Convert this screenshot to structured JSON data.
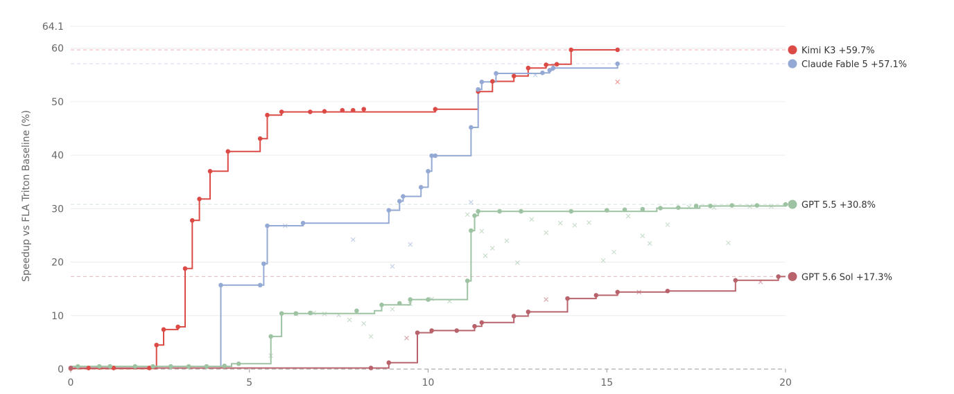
{
  "chart_data": {
    "type": "line",
    "title": "",
    "xlabel": "",
    "ylabel": "Speedup vs FLA Triton Baseline (%)",
    "xlim": [
      0,
      20
    ],
    "ylim": [
      0,
      64.1
    ],
    "x_ticks": [
      "0",
      "5",
      "10",
      "15",
      "20"
    ],
    "y_ticks": [
      "0",
      "10",
      "20",
      "30",
      "40",
      "50",
      "60",
      "64.1"
    ],
    "x_tick_values": [
      0,
      5,
      10,
      15,
      20
    ],
    "y_tick_values": [
      0,
      10,
      20,
      30,
      40,
      50,
      60,
      64.1
    ],
    "grid": "horizontal",
    "legend_placement": "right",
    "series": [
      {
        "name": "Kimi K3 +59.7%",
        "color": "#dc4a45",
        "final": 59.7,
        "step": [
          [
            0,
            0.1
          ],
          [
            2.4,
            0.1
          ],
          [
            2.4,
            4.5
          ],
          [
            2.6,
            4.5
          ],
          [
            2.6,
            7.4
          ],
          [
            3.0,
            7.4
          ],
          [
            3.0,
            7.9
          ],
          [
            3.2,
            7.9
          ],
          [
            3.2,
            18.8
          ],
          [
            3.4,
            18.8
          ],
          [
            3.4,
            27.8
          ],
          [
            3.6,
            27.8
          ],
          [
            3.6,
            31.8
          ],
          [
            3.9,
            31.8
          ],
          [
            3.9,
            37.0
          ],
          [
            4.4,
            37.0
          ],
          [
            4.4,
            40.7
          ],
          [
            5.3,
            40.7
          ],
          [
            5.3,
            43.1
          ],
          [
            5.5,
            43.1
          ],
          [
            5.5,
            47.5
          ],
          [
            5.9,
            47.5
          ],
          [
            5.9,
            48.1
          ],
          [
            10.2,
            48.1
          ],
          [
            10.2,
            48.6
          ],
          [
            11.4,
            48.6
          ],
          [
            11.4,
            51.9
          ],
          [
            11.8,
            51.9
          ],
          [
            11.8,
            53.8
          ],
          [
            12.4,
            53.8
          ],
          [
            12.4,
            54.8
          ],
          [
            12.8,
            54.8
          ],
          [
            12.8,
            56.3
          ],
          [
            13.3,
            56.3
          ],
          [
            13.3,
            56.9
          ],
          [
            13.6,
            56.9
          ],
          [
            13.6,
            57.0
          ],
          [
            14.0,
            57.0
          ],
          [
            14.0,
            59.7
          ],
          [
            15.3,
            59.7
          ]
        ],
        "points": [
          [
            0,
            0.1
          ],
          [
            0.5,
            0.2
          ],
          [
            0.8,
            0.3
          ],
          [
            1.2,
            0.2
          ],
          [
            2.2,
            0.2
          ],
          [
            2.4,
            4.5
          ],
          [
            2.6,
            7.4
          ],
          [
            3.0,
            7.9
          ],
          [
            3.2,
            18.8
          ],
          [
            3.4,
            27.8
          ],
          [
            3.6,
            31.8
          ],
          [
            3.9,
            37.0
          ],
          [
            4.4,
            40.7
          ],
          [
            5.3,
            43.1
          ],
          [
            5.5,
            47.5
          ],
          [
            5.9,
            48.1
          ],
          [
            6.7,
            48.1
          ],
          [
            7.1,
            48.2
          ],
          [
            7.6,
            48.4
          ],
          [
            7.9,
            48.4
          ],
          [
            8.2,
            48.6
          ],
          [
            10.2,
            48.6
          ],
          [
            11.4,
            51.9
          ],
          [
            11.8,
            53.8
          ],
          [
            12.4,
            54.8
          ],
          [
            12.8,
            56.3
          ],
          [
            13.3,
            56.9
          ],
          [
            13.6,
            57.0
          ],
          [
            14.0,
            59.7
          ],
          [
            15.3,
            59.7
          ]
        ],
        "crosses": [
          [
            15.3,
            53.7
          ]
        ]
      },
      {
        "name": "Claude Fable 5 +57.1%",
        "color": "#94a9d3",
        "final": 57.1,
        "step": [
          [
            0,
            0.2
          ],
          [
            4.2,
            0.2
          ],
          [
            4.2,
            15.7
          ],
          [
            5.4,
            15.7
          ],
          [
            5.4,
            19.7
          ],
          [
            5.5,
            19.7
          ],
          [
            5.5,
            26.8
          ],
          [
            6.5,
            26.8
          ],
          [
            6.5,
            27.3
          ],
          [
            8.9,
            27.3
          ],
          [
            8.9,
            29.7
          ],
          [
            9.2,
            29.7
          ],
          [
            9.2,
            31.4
          ],
          [
            9.3,
            31.4
          ],
          [
            9.3,
            32.3
          ],
          [
            9.8,
            32.3
          ],
          [
            9.8,
            34.0
          ],
          [
            10.0,
            34.0
          ],
          [
            10.0,
            37.0
          ],
          [
            10.1,
            37.0
          ],
          [
            10.1,
            39.9
          ],
          [
            11.2,
            39.9
          ],
          [
            11.2,
            45.2
          ],
          [
            11.4,
            45.2
          ],
          [
            11.4,
            52.3
          ],
          [
            11.5,
            52.3
          ],
          [
            11.5,
            53.7
          ],
          [
            11.9,
            53.7
          ],
          [
            11.9,
            55.3
          ],
          [
            13.2,
            55.3
          ],
          [
            13.2,
            55.4
          ],
          [
            13.4,
            55.4
          ],
          [
            13.4,
            55.9
          ],
          [
            13.5,
            55.9
          ],
          [
            13.5,
            56.3
          ],
          [
            15.3,
            56.3
          ],
          [
            15.3,
            57.1
          ]
        ],
        "points": [
          [
            0,
            0.2
          ],
          [
            4.2,
            15.7
          ],
          [
            5.3,
            15.7
          ],
          [
            5.4,
            19.7
          ],
          [
            5.5,
            26.8
          ],
          [
            6.5,
            27.3
          ],
          [
            8.9,
            29.7
          ],
          [
            9.2,
            31.4
          ],
          [
            9.3,
            32.3
          ],
          [
            9.8,
            34.0
          ],
          [
            10.0,
            37.0
          ],
          [
            10.1,
            39.9
          ],
          [
            10.2,
            39.9
          ],
          [
            11.2,
            45.2
          ],
          [
            11.4,
            52.3
          ],
          [
            11.5,
            53.7
          ],
          [
            11.9,
            55.3
          ],
          [
            13.2,
            55.4
          ],
          [
            13.4,
            55.9
          ],
          [
            13.5,
            56.3
          ],
          [
            15.3,
            57.1
          ]
        ],
        "crosses": [
          [
            6.0,
            26.8
          ],
          [
            7.9,
            24.2
          ],
          [
            9.0,
            19.2
          ],
          [
            9.5,
            23.3
          ],
          [
            11.2,
            31.2
          ],
          [
            13.0,
            55.0
          ]
        ]
      },
      {
        "name": "GPT 5.5 +30.8%",
        "color": "#9dc3a2",
        "final": 30.8,
        "step": [
          [
            0,
            0.5
          ],
          [
            4.5,
            0.5
          ],
          [
            4.5,
            1.0
          ],
          [
            5.6,
            1.0
          ],
          [
            5.6,
            6.1
          ],
          [
            5.9,
            6.1
          ],
          [
            5.9,
            10.4
          ],
          [
            8.5,
            10.4
          ],
          [
            8.5,
            10.9
          ],
          [
            8.7,
            10.9
          ],
          [
            8.7,
            12.0
          ],
          [
            9.5,
            12.0
          ],
          [
            9.5,
            13.0
          ],
          [
            11.1,
            13.0
          ],
          [
            11.1,
            16.5
          ],
          [
            11.2,
            16.5
          ],
          [
            11.2,
            25.9
          ],
          [
            11.3,
            25.9
          ],
          [
            11.3,
            28.7
          ],
          [
            11.4,
            28.7
          ],
          [
            11.4,
            29.5
          ],
          [
            16.4,
            29.5
          ],
          [
            16.4,
            30.1
          ],
          [
            17.6,
            30.1
          ],
          [
            17.6,
            30.5
          ],
          [
            20,
            30.5
          ],
          [
            20,
            30.8
          ]
        ],
        "points": [
          [
            0.2,
            0.5
          ],
          [
            0.8,
            0.5
          ],
          [
            1.1,
            0.5
          ],
          [
            1.8,
            0.5
          ],
          [
            2.3,
            0.5
          ],
          [
            2.8,
            0.5
          ],
          [
            3.3,
            0.5
          ],
          [
            3.8,
            0.5
          ],
          [
            4.3,
            0.6
          ],
          [
            4.7,
            1.0
          ],
          [
            5.6,
            6.1
          ],
          [
            5.9,
            10.4
          ],
          [
            6.3,
            10.4
          ],
          [
            6.7,
            10.5
          ],
          [
            8.0,
            10.9
          ],
          [
            8.7,
            12.0
          ],
          [
            9.2,
            12.3
          ],
          [
            9.5,
            13.0
          ],
          [
            10.0,
            13.0
          ],
          [
            11.1,
            16.5
          ],
          [
            11.2,
            25.9
          ],
          [
            11.3,
            28.7
          ],
          [
            11.4,
            29.5
          ],
          [
            12.0,
            29.5
          ],
          [
            12.6,
            29.5
          ],
          [
            14.0,
            29.5
          ],
          [
            15.0,
            29.7
          ],
          [
            15.5,
            29.8
          ],
          [
            16.0,
            29.9
          ],
          [
            16.5,
            30.1
          ],
          [
            17.0,
            30.2
          ],
          [
            17.5,
            30.5
          ],
          [
            17.9,
            30.5
          ],
          [
            18.5,
            30.6
          ],
          [
            19.2,
            30.6
          ],
          [
            20.0,
            30.8
          ]
        ],
        "crosses": [
          [
            5.6,
            2.5
          ],
          [
            6.3,
            10.3
          ],
          [
            6.8,
            10.5
          ],
          [
            7.1,
            10.3
          ],
          [
            7.5,
            10.1
          ],
          [
            7.8,
            9.2
          ],
          [
            8.2,
            8.5
          ],
          [
            8.4,
            6.1
          ],
          [
            9.0,
            11.2
          ],
          [
            9.5,
            12.2
          ],
          [
            10.1,
            13.1
          ],
          [
            10.6,
            12.7
          ],
          [
            11.1,
            28.9
          ],
          [
            11.5,
            25.8
          ],
          [
            11.6,
            21.2
          ],
          [
            11.8,
            22.6
          ],
          [
            12.2,
            24.0
          ],
          [
            12.5,
            19.9
          ],
          [
            12.9,
            28.0
          ],
          [
            13.3,
            25.5
          ],
          [
            13.7,
            27.3
          ],
          [
            14.1,
            26.9
          ],
          [
            14.5,
            27.4
          ],
          [
            14.9,
            20.3
          ],
          [
            15.2,
            21.9
          ],
          [
            15.6,
            28.6
          ],
          [
            16.0,
            24.9
          ],
          [
            16.2,
            23.5
          ],
          [
            16.7,
            27.0
          ],
          [
            17.3,
            30.3
          ],
          [
            18.0,
            30.2
          ],
          [
            18.4,
            23.6
          ],
          [
            19.0,
            30.4
          ],
          [
            19.6,
            30.4
          ]
        ]
      },
      {
        "name": "GPT 5.6 Sol +17.3%",
        "color": "#b8636b",
        "final": 17.3,
        "step": [
          [
            0,
            0.2
          ],
          [
            8.9,
            0.2
          ],
          [
            8.9,
            1.2
          ],
          [
            9.7,
            1.2
          ],
          [
            9.7,
            6.8
          ],
          [
            10.1,
            6.8
          ],
          [
            10.1,
            7.2
          ],
          [
            11.3,
            7.2
          ],
          [
            11.3,
            8.0
          ],
          [
            11.5,
            8.0
          ],
          [
            11.5,
            8.7
          ],
          [
            12.4,
            8.7
          ],
          [
            12.4,
            9.9
          ],
          [
            12.8,
            9.9
          ],
          [
            12.8,
            10.7
          ],
          [
            13.9,
            10.7
          ],
          [
            13.9,
            13.2
          ],
          [
            14.7,
            13.2
          ],
          [
            14.7,
            13.8
          ],
          [
            15.3,
            13.8
          ],
          [
            15.3,
            14.4
          ],
          [
            16.7,
            14.4
          ],
          [
            16.7,
            14.6
          ],
          [
            18.6,
            14.6
          ],
          [
            18.6,
            16.6
          ],
          [
            19.8,
            16.6
          ],
          [
            19.8,
            17.3
          ],
          [
            20,
            17.3
          ]
        ],
        "points": [
          [
            0,
            0.2
          ],
          [
            8.4,
            0.2
          ],
          [
            8.9,
            1.2
          ],
          [
            9.7,
            6.8
          ],
          [
            10.1,
            7.2
          ],
          [
            10.8,
            7.2
          ],
          [
            11.3,
            8.0
          ],
          [
            11.5,
            8.7
          ],
          [
            12.4,
            9.9
          ],
          [
            12.8,
            10.7
          ],
          [
            13.9,
            13.2
          ],
          [
            14.7,
            13.8
          ],
          [
            15.3,
            14.4
          ],
          [
            16.7,
            14.6
          ],
          [
            18.6,
            16.6
          ],
          [
            19.8,
            17.3
          ]
        ],
        "crosses": [
          [
            9.4,
            5.8
          ],
          [
            13.3,
            13.0
          ],
          [
            15.9,
            14.4
          ],
          [
            19.3,
            16.3
          ]
        ]
      }
    ]
  }
}
